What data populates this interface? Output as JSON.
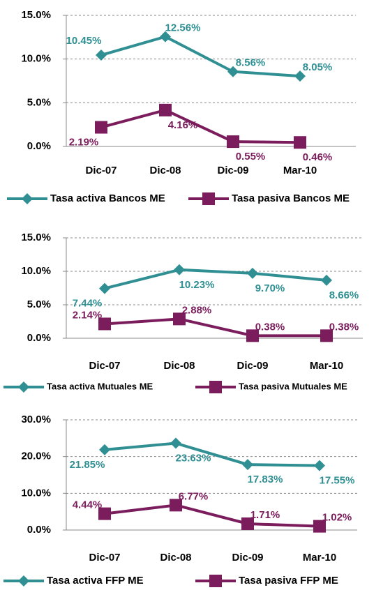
{
  "chart_data": [
    {
      "type": "line",
      "categories": [
        "Dic-07",
        "Dic-08",
        "Dic-09",
        "Mar-10"
      ],
      "series": [
        {
          "name": "Tasa activa Bancos ME",
          "color": "#2f8f93",
          "marker": "diamond",
          "values": [
            10.45,
            12.56,
            8.56,
            8.05
          ],
          "value_labels": [
            "10.45%",
            "12.56%",
            "8.56%",
            "8.05%"
          ]
        },
        {
          "name": "Tasa pasiva Bancos ME",
          "color": "#7b1c5c",
          "marker": "square",
          "values": [
            2.19,
            4.16,
            0.55,
            0.46
          ],
          "value_labels": [
            "2.19%",
            "4.16%",
            "0.55%",
            "0.46%"
          ]
        }
      ],
      "ylim": [
        0,
        15
      ],
      "yticks": [
        {
          "value": 0,
          "label": "0.0%"
        },
        {
          "value": 5,
          "label": "5.0%"
        },
        {
          "value": 10,
          "label": "10.0%"
        },
        {
          "value": 15,
          "label": "15.0%"
        }
      ],
      "grid": true,
      "legend": "bottom"
    },
    {
      "type": "line",
      "categories": [
        "Dic-07",
        "Dic-08",
        "Dic-09",
        "Mar-10"
      ],
      "series": [
        {
          "name": "Tasa activa Mutuales ME",
          "color": "#2f8f93",
          "marker": "diamond",
          "values": [
            7.44,
            10.23,
            9.7,
            8.66
          ],
          "value_labels": [
            "7.44%",
            "10.23%",
            "9.70%",
            "8.66%"
          ]
        },
        {
          "name": "Tasa pasiva Mutuales ME",
          "color": "#7b1c5c",
          "marker": "square",
          "values": [
            2.14,
            2.88,
            0.38,
            0.38
          ],
          "value_labels": [
            "2.14%",
            "2.88%",
            "0.38%",
            "0.38%"
          ]
        }
      ],
      "ylim": [
        0,
        15
      ],
      "yticks": [
        {
          "value": 0,
          "label": "0.0%"
        },
        {
          "value": 5,
          "label": "5.0%"
        },
        {
          "value": 10,
          "label": "10.0%"
        },
        {
          "value": 15,
          "label": "15.0%"
        }
      ],
      "grid": true,
      "legend": "bottom"
    },
    {
      "type": "line",
      "categories": [
        "Dic-07",
        "Dic-08",
        "Dic-09",
        "Mar-10"
      ],
      "series": [
        {
          "name": "Tasa activa FFP ME",
          "color": "#2f8f93",
          "marker": "diamond",
          "values": [
            21.85,
            23.63,
            17.83,
            17.55
          ],
          "value_labels": [
            "21.85%",
            "23.63%",
            "17.83%",
            "17.55%"
          ]
        },
        {
          "name": "Tasa pasiva FFP ME",
          "color": "#7b1c5c",
          "marker": "square",
          "values": [
            4.44,
            6.77,
            1.71,
            1.02
          ],
          "value_labels": [
            "4.44%",
            "6.77%",
            "1.71%",
            "1.02%"
          ]
        }
      ],
      "ylim": [
        0,
        30
      ],
      "yticks": [
        {
          "value": 0,
          "label": "0.0%"
        },
        {
          "value": 10,
          "label": "10.0%"
        },
        {
          "value": 20,
          "label": "20.0%"
        },
        {
          "value": 30,
          "label": "30.0%"
        }
      ],
      "grid": true,
      "legend": "bottom"
    }
  ]
}
